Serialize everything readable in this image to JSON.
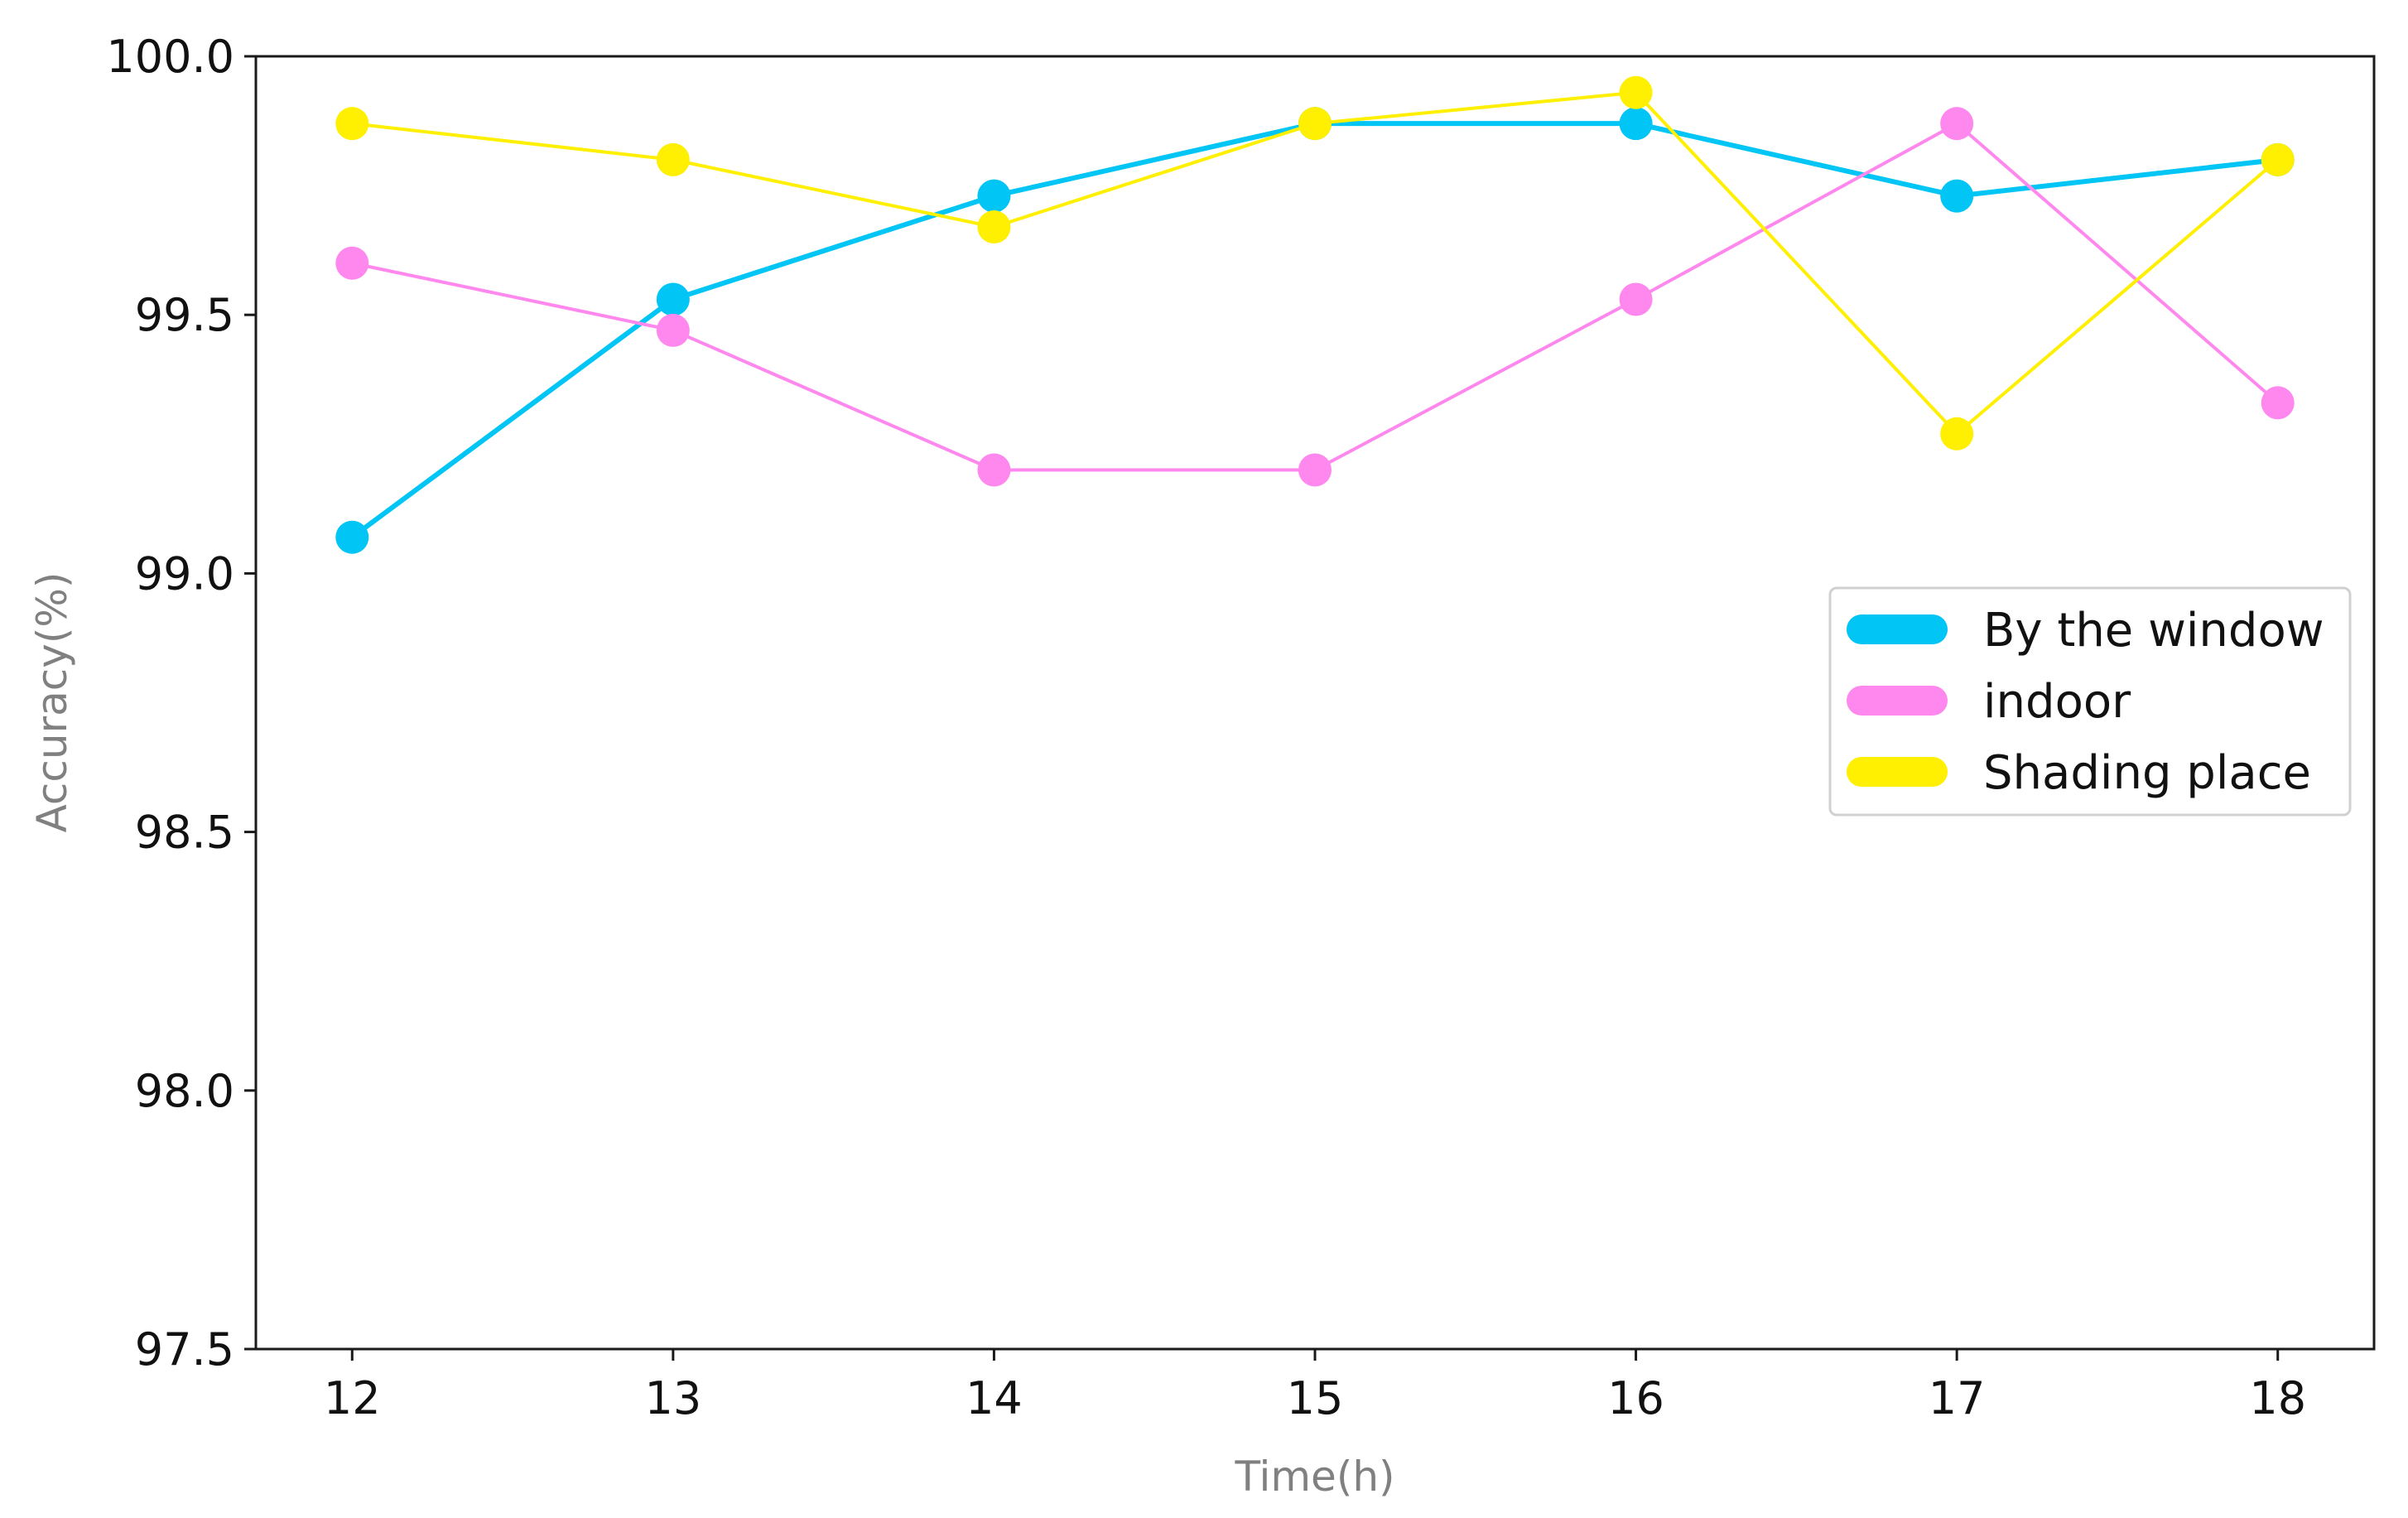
{
  "chart_data": {
    "type": "line",
    "title": "",
    "xlabel": "Time(h)",
    "ylabel": "Accuracy(%)",
    "x": [
      12,
      13,
      14,
      15,
      16,
      17,
      18
    ],
    "xticks": [
      "12",
      "13",
      "14",
      "15",
      "16",
      "17",
      "18"
    ],
    "yticks": [
      "97.5",
      "98.0",
      "98.5",
      "99.0",
      "99.5",
      "100.0"
    ],
    "xlim": [
      11.7,
      18.3
    ],
    "ylim": [
      97.5,
      100.0
    ],
    "grid": false,
    "legend_position": "center-right",
    "series": [
      {
        "name": "By the window",
        "color": "#00c5f5",
        "values": [
          99.07,
          99.53,
          99.73,
          99.87,
          99.87,
          99.73,
          99.8
        ]
      },
      {
        "name": "indoor",
        "color": "#ff88ee",
        "values": [
          99.6,
          99.47,
          99.2,
          99.2,
          99.53,
          99.87,
          99.33
        ]
      },
      {
        "name": "Shading place",
        "color": "#ffef00",
        "values": [
          99.87,
          99.8,
          99.67,
          99.87,
          99.93,
          99.27,
          99.8
        ]
      }
    ]
  }
}
